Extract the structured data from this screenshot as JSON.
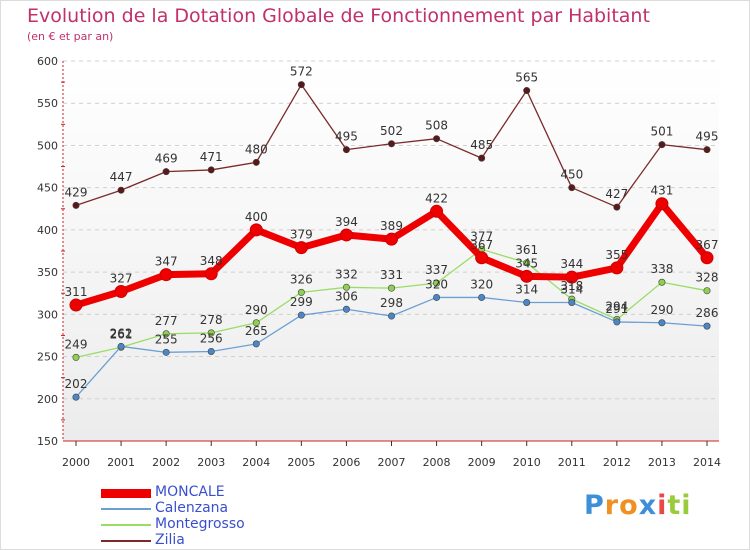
{
  "chart_data": {
    "type": "line",
    "title": "Evolution de la Dotation Globale de Fonctionnement par Habitant",
    "subtitle": "(en € et par an)",
    "x": [
      "2000",
      "2001",
      "2002",
      "2003",
      "2004",
      "2005",
      "2006",
      "2007",
      "2008",
      "2009",
      "2010",
      "2011",
      "2012",
      "2013",
      "2014"
    ],
    "ylim": [
      150,
      600
    ],
    "yticks": [
      150,
      200,
      250,
      300,
      350,
      400,
      450,
      500,
      550,
      600
    ],
    "grid": true,
    "legend_position": "bottom-left",
    "series": [
      {
        "name": "MONCALE",
        "color": "#ee0000",
        "values": [
          311,
          327,
          347,
          348,
          400,
          379,
          394,
          389,
          422,
          367,
          345,
          344,
          355,
          431,
          367
        ]
      },
      {
        "name": "Calenzana",
        "color": "#6a9fd4",
        "values": [
          202,
          262,
          255,
          256,
          265,
          299,
          306,
          298,
          320,
          320,
          314,
          314,
          291,
          290,
          286
        ]
      },
      {
        "name": "Montegrosso",
        "color": "#99dd66",
        "values": [
          249,
          261,
          277,
          278,
          290,
          326,
          332,
          331,
          337,
          377,
          361,
          318,
          294,
          338,
          328
        ]
      },
      {
        "name": "Zilia",
        "color": "#7a2a2a",
        "values": [
          429,
          447,
          469,
          471,
          480,
          572,
          495,
          502,
          508,
          485,
          565,
          450,
          427,
          501,
          495
        ]
      }
    ]
  },
  "logo": {
    "letters": [
      "P",
      "r",
      "o",
      "x",
      "i",
      "t",
      "i"
    ],
    "colors": [
      "#3c8fd8",
      "#f09020",
      "#f09020",
      "#3c8fd8",
      "#e84848",
      "#9acb3c",
      "#9acb3c"
    ]
  }
}
